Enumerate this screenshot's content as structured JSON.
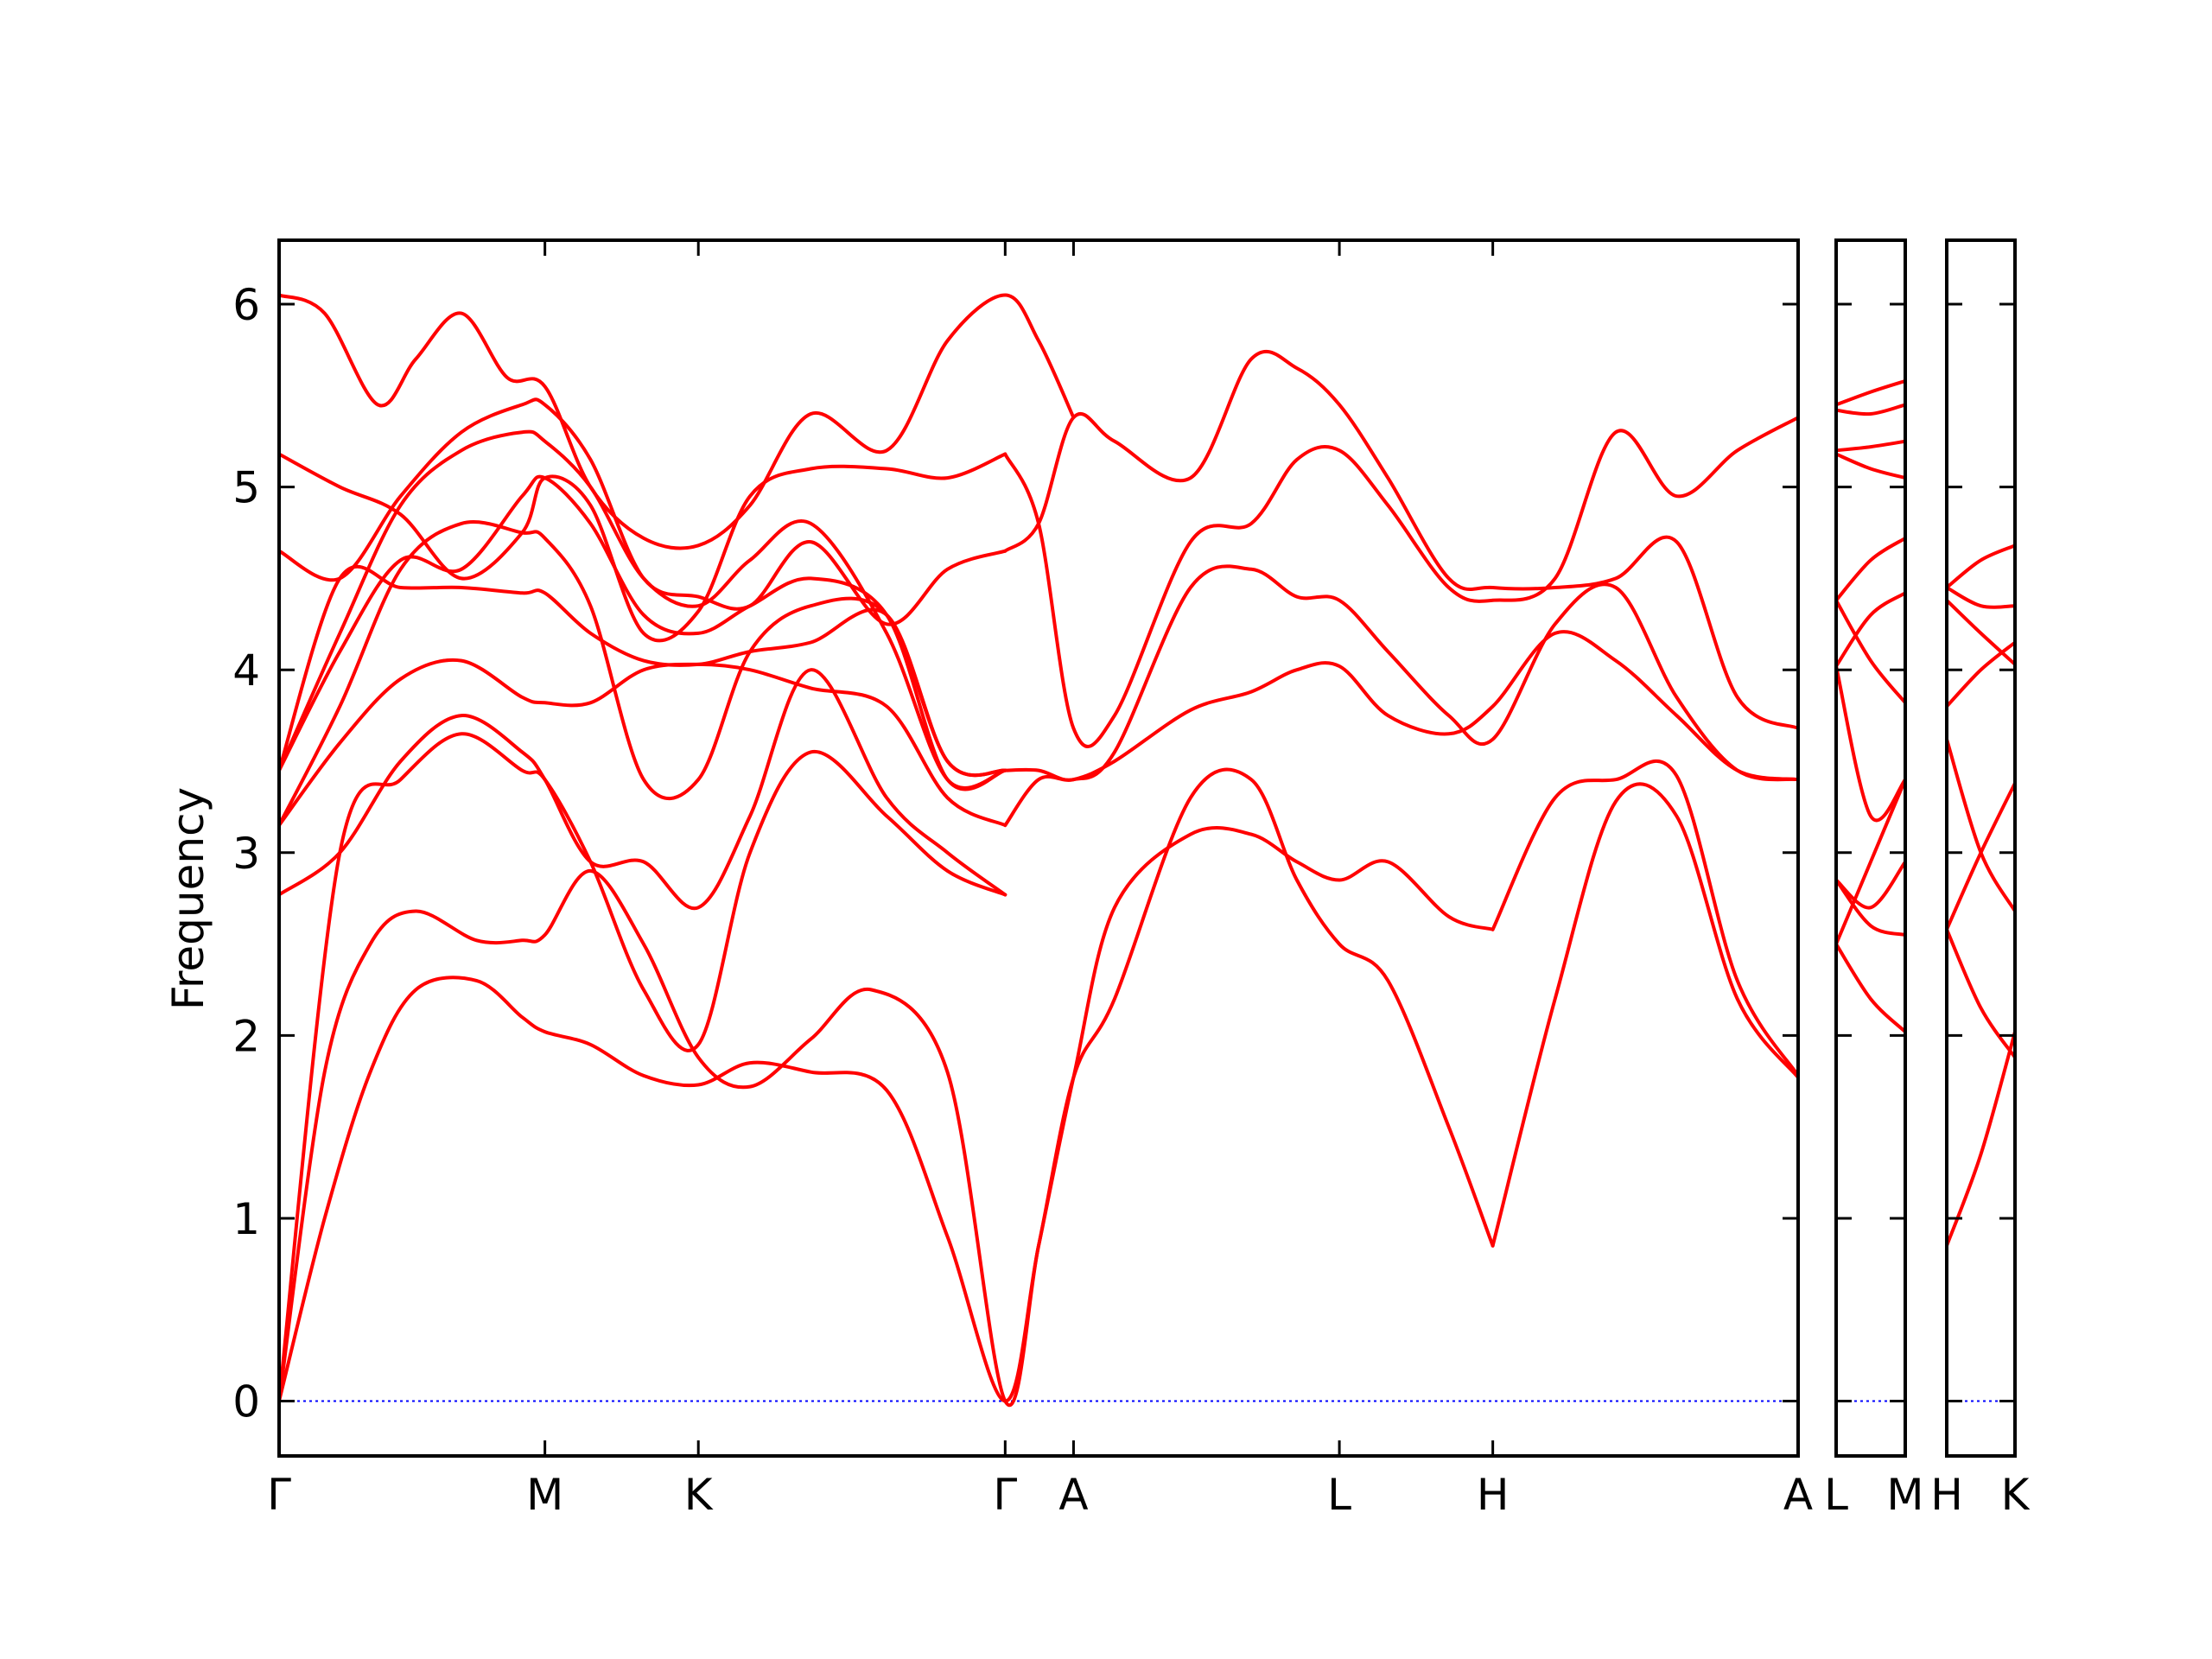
{
  "colors": {
    "band": "#ff0000",
    "zero_line": "#0000ff",
    "axes": "#000000"
  },
  "chart_data": {
    "type": "line",
    "title": "",
    "xlabel": "",
    "ylabel": "Frequency",
    "ylim": [
      -0.3,
      6.35
    ],
    "yticks": [
      0,
      1,
      2,
      3,
      4,
      5,
      6
    ],
    "grid": false,
    "legend": "none",
    "segments": [
      {
        "name": "G-M-K-G-A-L-H-A",
        "xlim": [
          0,
          1
        ],
        "ticks": [
          {
            "x": 0.0,
            "label": "Γ"
          },
          {
            "x": 0.175,
            "label": "M"
          },
          {
            "x": 0.276,
            "label": "K"
          },
          {
            "x": 0.478,
            "label": "Γ"
          },
          {
            "x": 0.523,
            "label": "A"
          },
          {
            "x": 0.698,
            "label": "L"
          },
          {
            "x": 0.799,
            "label": "H"
          },
          {
            "x": 1.0,
            "label": "A"
          }
        ],
        "bands": [
          {
            "x": [
              0,
              0.03,
              0.06,
              0.09,
              0.13,
              0.16,
              0.175,
              0.205,
              0.24,
              0.276,
              0.31,
              0.35,
              0.4,
              0.44,
              0.478,
              0.5,
              0.523,
              0.55,
              0.6,
              0.64,
              0.67,
              0.698,
              0.73,
              0.77,
              0.799
            ],
            "y": [
              0,
              1.0,
              1.8,
              2.25,
              2.3,
              2.1,
              2.02,
              1.95,
              1.78,
              1.73,
              1.85,
              1.8,
              1.7,
              0.9,
              0,
              0.85,
              1.77,
              2.7,
              3.1,
              3.1,
              2.95,
              2.85,
              2.95,
              2.65,
              2.58
            ]
          },
          {
            "x": [
              0,
              0.03,
              0.06,
              0.09,
              0.13,
              0.16,
              0.175,
              0.205,
              0.24,
              0.276,
              0.31,
              0.35,
              0.39,
              0.44,
              0.478,
              0.5,
              0.523,
              0.55,
              0.6,
              0.64,
              0.67,
              0.698,
              0.73,
              0.77,
              0.799
            ],
            "y": [
              0,
              1.8,
              2.5,
              2.68,
              2.52,
              2.52,
              2.55,
              2.9,
              2.5,
              1.88,
              1.72,
              1.98,
              2.25,
              1.8,
              0,
              0.85,
              1.77,
              2.2,
              3.3,
              3.4,
              2.85,
              2.5,
              2.3,
              1.5,
              0.85
            ]
          },
          {
            "x": [
              0,
              0.04,
              0.08,
              0.12,
              0.16,
              0.175,
              0.205,
              0.24,
              0.276,
              0.31,
              0.35,
              0.4,
              0.44,
              0.478
            ],
            "y": [
              0,
              3.0,
              3.4,
              3.65,
              3.45,
              3.4,
              2.95,
              2.25,
              1.95,
              3.0,
              3.55,
              3.2,
              2.9,
              2.77
            ]
          },
          {
            "x": [
              0,
              0.04,
              0.08,
              0.12,
              0.16,
              0.175,
              0.205,
              0.24,
              0.276,
              0.31,
              0.35,
              0.4,
              0.44,
              0.478
            ],
            "y": [
              2.77,
              3.0,
              3.5,
              3.75,
              3.55,
              3.4,
              2.95,
              2.95,
              2.7,
              3.2,
              4.0,
              3.3,
              3.0,
              2.77
            ]
          },
          {
            "x": [
              0,
              0.04,
              0.08,
              0.12,
              0.16,
              0.175,
              0.205,
              0.24,
              0.276,
              0.31,
              0.35,
              0.4,
              0.44,
              0.478
            ],
            "y": [
              3.15,
              3.6,
              3.95,
              4.05,
              3.85,
              3.82,
              3.82,
              4.0,
              4.03,
              4.0,
              3.9,
              3.8,
              3.3,
              3.15
            ]
          },
          {
            "x": [
              0,
              0.04,
              0.08,
              0.12,
              0.16,
              0.175,
              0.205,
              0.24,
              0.276,
              0.31,
              0.35,
              0.4,
              0.44,
              0.478
            ],
            "y": [
              3.45,
              4.5,
              4.45,
              4.45,
              4.42,
              4.42,
              4.2,
              4.05,
              4.03,
              4.1,
              4.15,
              4.3,
              3.5,
              3.45
            ]
          },
          {
            "x": [
              0,
              0.04,
              0.08,
              0.12,
              0.16,
              0.175,
              0.205,
              0.24,
              0.276,
              0.31,
              0.35,
              0.4,
              0.44,
              0.478
            ],
            "y": [
              3.15,
              3.8,
              4.55,
              4.8,
              4.75,
              4.72,
              4.35,
              3.4,
              3.4,
              4.1,
              4.35,
              4.3,
              3.5,
              3.45
            ]
          },
          {
            "x": [
              0,
              0.04,
              0.08,
              0.12,
              0.16,
              0.175,
              0.205,
              0.24,
              0.276,
              0.31,
              0.35,
              0.4,
              0.44,
              0.478
            ],
            "y": [
              3.45,
              4.1,
              4.6,
              4.55,
              4.95,
              5.05,
              4.8,
              4.3,
              4.2,
              4.35,
              4.5,
              4.3,
              3.4,
              3.45
            ]
          },
          {
            "x": [
              0,
              0.04,
              0.08,
              0.12,
              0.16,
              0.175,
              0.205,
              0.24,
              0.276,
              0.31,
              0.35,
              0.4,
              0.44,
              0.478
            ],
            "y": [
              3.45,
              4.2,
              4.9,
              5.2,
              5.3,
              5.25,
              5.0,
              4.5,
              4.35,
              4.6,
              4.8,
              4.2,
              3.4,
              3.45
            ]
          },
          {
            "x": [
              0,
              0.04,
              0.08,
              0.12,
              0.16,
              0.175,
              0.205,
              0.24,
              0.276,
              0.31,
              0.35,
              0.4,
              0.44,
              0.478
            ],
            "y": [
              4.65,
              4.5,
              4.95,
              5.3,
              5.45,
              5.45,
              5.15,
              4.5,
              4.4,
              4.35,
              4.7,
              4.25,
              4.55,
              4.65
            ]
          },
          {
            "x": [
              0,
              0.04,
              0.08,
              0.12,
              0.16,
              0.175,
              0.205,
              0.24,
              0.276,
              0.31,
              0.35,
              0.4,
              0.44,
              0.478
            ],
            "y": [
              5.18,
              5.0,
              4.85,
              4.5,
              4.75,
              5.05,
              4.9,
              4.2,
              4.32,
              4.95,
              5.1,
              5.1,
              5.05,
              5.18
            ]
          },
          {
            "x": [
              0,
              0.03,
              0.065,
              0.09,
              0.12,
              0.15,
              0.175,
              0.205,
              0.24,
              0.276,
              0.31,
              0.35,
              0.4,
              0.44,
              0.478,
              0.5,
              0.523
            ],
            "y": [
              6.05,
              5.95,
              5.45,
              5.7,
              5.95,
              5.6,
              5.55,
              5.0,
              4.72,
              4.68,
              4.9,
              5.4,
              5.2,
              5.8,
              6.05,
              5.8,
              5.38
            ]
          },
          {
            "x": [
              0.478,
              0.5,
              0.523,
              0.55,
              0.6,
              0.64,
              0.67,
              0.698,
              0.73,
              0.77,
              0.799,
              0.84,
              0.88,
              0.92,
              0.96,
              1.0
            ],
            "y": [
              3.45,
              3.45,
              3.4,
              3.55,
              4.45,
              4.55,
              4.4,
              4.38,
              4.1,
              3.75,
              3.62,
              4.25,
              4.45,
              3.85,
              3.45,
              3.4
            ]
          },
          {
            "x": [
              0.478,
              0.5,
              0.523,
              0.55,
              0.6,
              0.64,
              0.67,
              0.698,
              0.73,
              0.77,
              0.799,
              0.84,
              0.88,
              0.92,
              0.96,
              1.0
            ],
            "y": [
              3.15,
              3.4,
              3.4,
              3.5,
              3.78,
              3.88,
              4.0,
              4.02,
              3.75,
              3.65,
              3.8,
              4.2,
              4.05,
              3.75,
              3.45,
              3.4
            ]
          },
          {
            "x": [
              0.478,
              0.5,
              0.523,
              0.55,
              0.6,
              0.64,
              0.67,
              0.698,
              0.73,
              0.77,
              0.799,
              0.84,
              0.88,
              0.92,
              0.96,
              1.0
            ],
            "y": [
              4.65,
              4.8,
              5.38,
              5.25,
              5.05,
              5.7,
              5.65,
              5.45,
              5.05,
              4.5,
              4.45,
              4.45,
              4.5,
              4.7,
              3.85,
              3.68
            ]
          },
          {
            "x": [
              0.478,
              0.5,
              0.523,
              0.55,
              0.6,
              0.64,
              0.67,
              0.698,
              0.73,
              0.77,
              0.799,
              0.84,
              0.88,
              0.92,
              0.96,
              1.0
            ],
            "y": [
              5.18,
              4.8,
              3.68,
              3.75,
              4.7,
              4.8,
              5.15,
              5.2,
              4.9,
              4.45,
              4.38,
              4.5,
              5.3,
              4.95,
              5.2,
              5.38
            ]
          },
          {
            "x": [
              0.799,
              0.84,
              0.88,
              0.92,
              0.96,
              1.0
            ],
            "y": [
              2.58,
              3.3,
              3.4,
              3.42,
              2.3,
              1.78
            ]
          },
          {
            "x": [
              0.799,
              0.84,
              0.88,
              0.92,
              0.96,
              1.0
            ],
            "y": [
              0.85,
              2.2,
              3.28,
              3.2,
              2.2,
              1.77
            ]
          }
        ]
      },
      {
        "name": "L-M",
        "xlim": [
          0,
          1
        ],
        "ticks": [
          {
            "x": 0.0,
            "label": "L"
          },
          {
            "x": 1.0,
            "label": "M"
          }
        ],
        "bands": [
          {
            "x": [
              0,
              0.5,
              1
            ],
            "y": [
              2.5,
              2.2,
              2.02
            ]
          },
          {
            "x": [
              0,
              0.5,
              1
            ],
            "y": [
              2.5,
              2.95,
              3.4
            ]
          },
          {
            "x": [
              0,
              0.5,
              1
            ],
            "y": [
              2.85,
              2.6,
              2.55
            ]
          },
          {
            "x": [
              0,
              0.5,
              1
            ],
            "y": [
              2.85,
              2.7,
              2.95
            ]
          },
          {
            "x": [
              0,
              0.5,
              1
            ],
            "y": [
              4.02,
              3.2,
              3.4
            ]
          },
          {
            "x": [
              0,
              0.5,
              1
            ],
            "y": [
              4.02,
              4.3,
              4.42
            ]
          },
          {
            "x": [
              0,
              0.5,
              1
            ],
            "y": [
              4.38,
              4.05,
              3.82
            ]
          },
          {
            "x": [
              0,
              0.5,
              1
            ],
            "y": [
              4.38,
              4.6,
              4.72
            ]
          },
          {
            "x": [
              0,
              0.5,
              1
            ],
            "y": [
              5.18,
              5.1,
              5.05
            ]
          },
          {
            "x": [
              0,
              0.5,
              1
            ],
            "y": [
              5.2,
              5.22,
              5.25
            ]
          },
          {
            "x": [
              0,
              0.5,
              1
            ],
            "y": [
              5.42,
              5.4,
              5.45
            ]
          },
          {
            "x": [
              0,
              0.5,
              1
            ],
            "y": [
              5.45,
              5.52,
              5.58
            ]
          }
        ]
      },
      {
        "name": "H-K",
        "xlim": [
          0,
          1
        ],
        "ticks": [
          {
            "x": 0.0,
            "label": "H"
          },
          {
            "x": 1.0,
            "label": "K"
          }
        ],
        "bands": [
          {
            "x": [
              0,
              0.5,
              1
            ],
            "y": [
              0.85,
              1.35,
              2.02
            ]
          },
          {
            "x": [
              0,
              0.5,
              1
            ],
            "y": [
              2.58,
              2.15,
              1.88
            ]
          },
          {
            "x": [
              0,
              0.5,
              1
            ],
            "y": [
              2.58,
              3.0,
              3.38
            ]
          },
          {
            "x": [
              0,
              0.5,
              1
            ],
            "y": [
              3.62,
              3.0,
              2.68
            ]
          },
          {
            "x": [
              0,
              0.5,
              1
            ],
            "y": [
              3.8,
              4.0,
              4.15
            ]
          },
          {
            "x": [
              0,
              0.5,
              1
            ],
            "y": [
              4.38,
              4.2,
              4.03
            ]
          },
          {
            "x": [
              0,
              0.5,
              1
            ],
            "y": [
              4.45,
              4.35,
              4.35
            ]
          },
          {
            "x": [
              0,
              0.5,
              1
            ],
            "y": [
              4.45,
              4.6,
              4.68
            ]
          }
        ]
      }
    ]
  }
}
